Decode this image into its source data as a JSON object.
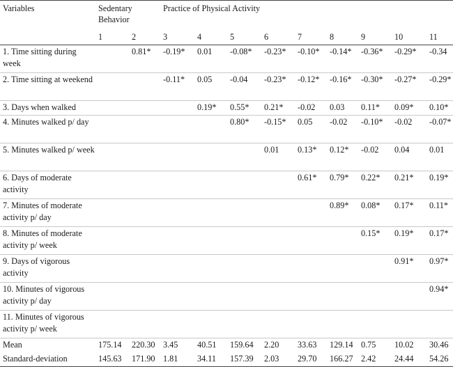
{
  "header": {
    "variables_label": "Variables",
    "sedentary_label": "Sedentary Behavior",
    "practice_label": "Practice of Physical Activity",
    "col_numbers": [
      "1",
      "2",
      "3",
      "4",
      "5",
      "6",
      "7",
      "8",
      "9",
      "10",
      "11"
    ]
  },
  "rows": [
    {
      "label": "1. Time sitting during week",
      "values": [
        "",
        "0.81*",
        "-0.19*",
        "0.01",
        "-0.08*",
        "-0.23*",
        "-0.10*",
        "-0.14*",
        "-0.36*",
        "-0.29*",
        "-0.34"
      ]
    },
    {
      "label": "2. Time sitting at weekend",
      "values": [
        "",
        "",
        "-0.11*",
        "0.05",
        "-0.04",
        "-0.23*",
        "-0.12*",
        "-0.16*",
        "-0.30*",
        "-0.27*",
        "-0.29*"
      ]
    },
    {
      "label": "3. Days when walked",
      "values": [
        "",
        "",
        "",
        "0.19*",
        "0.55*",
        "0.21*",
        "-0.02",
        "0.03",
        "0.11*",
        "0.09*",
        "0.10*"
      ]
    },
    {
      "label": "4. Minutes walked p/ day",
      "values": [
        "",
        "",
        "",
        "",
        "0.80*",
        "-0.15*",
        "0.05",
        "-0.02",
        "-0.10*",
        "-0.02",
        "-0.07*"
      ]
    },
    {
      "label": "5. Minutes walked p/ week",
      "values": [
        "",
        "",
        "",
        "",
        "",
        "0.01",
        "0.13*",
        "0.12*",
        "-0.02",
        "0.04",
        "0.01"
      ]
    },
    {
      "label": "6. Days of moderate activity",
      "values": [
        "",
        "",
        "",
        "",
        "",
        "",
        "0.61*",
        "0.79*",
        "0.22*",
        "0.21*",
        "0.19*"
      ]
    },
    {
      "label": "7. Minutes of moderate activity p/ day",
      "values": [
        "",
        "",
        "",
        "",
        "",
        "",
        "",
        "0.89*",
        "0.08*",
        "0.17*",
        "0.11*"
      ]
    },
    {
      "label": "8. Minutes of moderate activity p/ week",
      "values": [
        "",
        "",
        "",
        "",
        "",
        "",
        "",
        "",
        "0.15*",
        "0.19*",
        "0.17*"
      ]
    },
    {
      "label": "9. Days of vigorous activity",
      "values": [
        "",
        "",
        "",
        "",
        "",
        "",
        "",
        "",
        "",
        "0.91*",
        "0.97*"
      ]
    },
    {
      "label": "10. Minutes of vigorous activity p/ day",
      "values": [
        "",
        "",
        "",
        "",
        "",
        "",
        "",
        "",
        "",
        "",
        "0.94*"
      ]
    },
    {
      "label": "11. Minutes of vigorous activity p/ week",
      "values": [
        "",
        "",
        "",
        "",
        "",
        "",
        "",
        "",
        "",
        "",
        ""
      ]
    }
  ],
  "mean": {
    "label": "Mean",
    "values": [
      "175.14",
      "220.30",
      "3.45",
      "40.51",
      "159.64",
      "2.20",
      "33.63",
      "129.14",
      "0.75",
      "10.02",
      "30.46"
    ]
  },
  "sd": {
    "label": "Standard-deviation",
    "values": [
      "145.63",
      "171.90",
      "1.81",
      "34.11",
      "157.39",
      "2.03",
      "29.70",
      "166.27",
      "2.42",
      "24.44",
      "54.26"
    ]
  }
}
